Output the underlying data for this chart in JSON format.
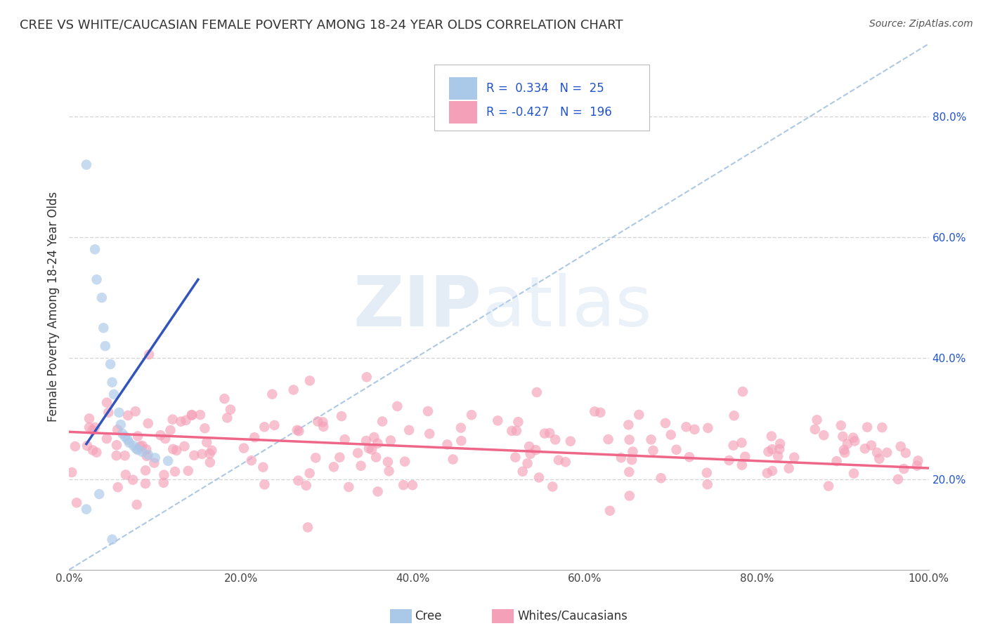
{
  "title": "CREE VS WHITE/CAUCASIAN FEMALE POVERTY AMONG 18-24 YEAR OLDS CORRELATION CHART",
  "source": "Source: ZipAtlas.com",
  "ylabel": "Female Poverty Among 18-24 Year Olds",
  "xlim": [
    0,
    1.0
  ],
  "ylim": [
    0.05,
    0.92
  ],
  "yticks": [
    0.2,
    0.4,
    0.6,
    0.8
  ],
  "ytick_labels": [
    "20.0%",
    "40.0%",
    "60.0%",
    "80.0%"
  ],
  "xticks": [
    0.0,
    0.2,
    0.4,
    0.6,
    0.8,
    1.0
  ],
  "xtick_labels": [
    "0.0%",
    "20.0%",
    "40.0%",
    "60.0%",
    "80.0%",
    "100.0%"
  ],
  "cree_color": "#aac8e8",
  "white_color": "#f4a0b8",
  "cree_line_color": "#3355bb",
  "white_line_color": "#ee6688",
  "diag_color": "#99bbdd",
  "cree_R": 0.334,
  "cree_N": 25,
  "white_R": -0.427,
  "white_N": 196,
  "legend_R_color": "#2255cc",
  "legend_text_color": "#333333",
  "background_color": "#ffffff",
  "grid_color": "#cccccc",
  "cree_points_x": [
    0.02,
    0.03,
    0.032,
    0.038,
    0.04,
    0.042,
    0.048,
    0.05,
    0.052,
    0.058,
    0.06,
    0.062,
    0.065,
    0.068,
    0.07,
    0.075,
    0.078,
    0.08,
    0.085,
    0.092,
    0.1,
    0.115,
    0.02,
    0.035,
    0.05
  ],
  "cree_points_y": [
    0.72,
    0.58,
    0.53,
    0.5,
    0.45,
    0.42,
    0.39,
    0.36,
    0.34,
    0.31,
    0.29,
    0.275,
    0.27,
    0.265,
    0.26,
    0.255,
    0.25,
    0.248,
    0.245,
    0.24,
    0.235,
    0.23,
    0.15,
    0.175,
    0.1
  ],
  "cree_line_x": [
    0.02,
    0.15
  ],
  "cree_line_y": [
    0.258,
    0.53
  ],
  "white_line_x": [
    0.0,
    1.0
  ],
  "white_line_y": [
    0.278,
    0.218
  ],
  "diag_line_x": [
    0.0,
    1.0
  ],
  "diag_line_y": [
    0.05,
    0.92
  ]
}
